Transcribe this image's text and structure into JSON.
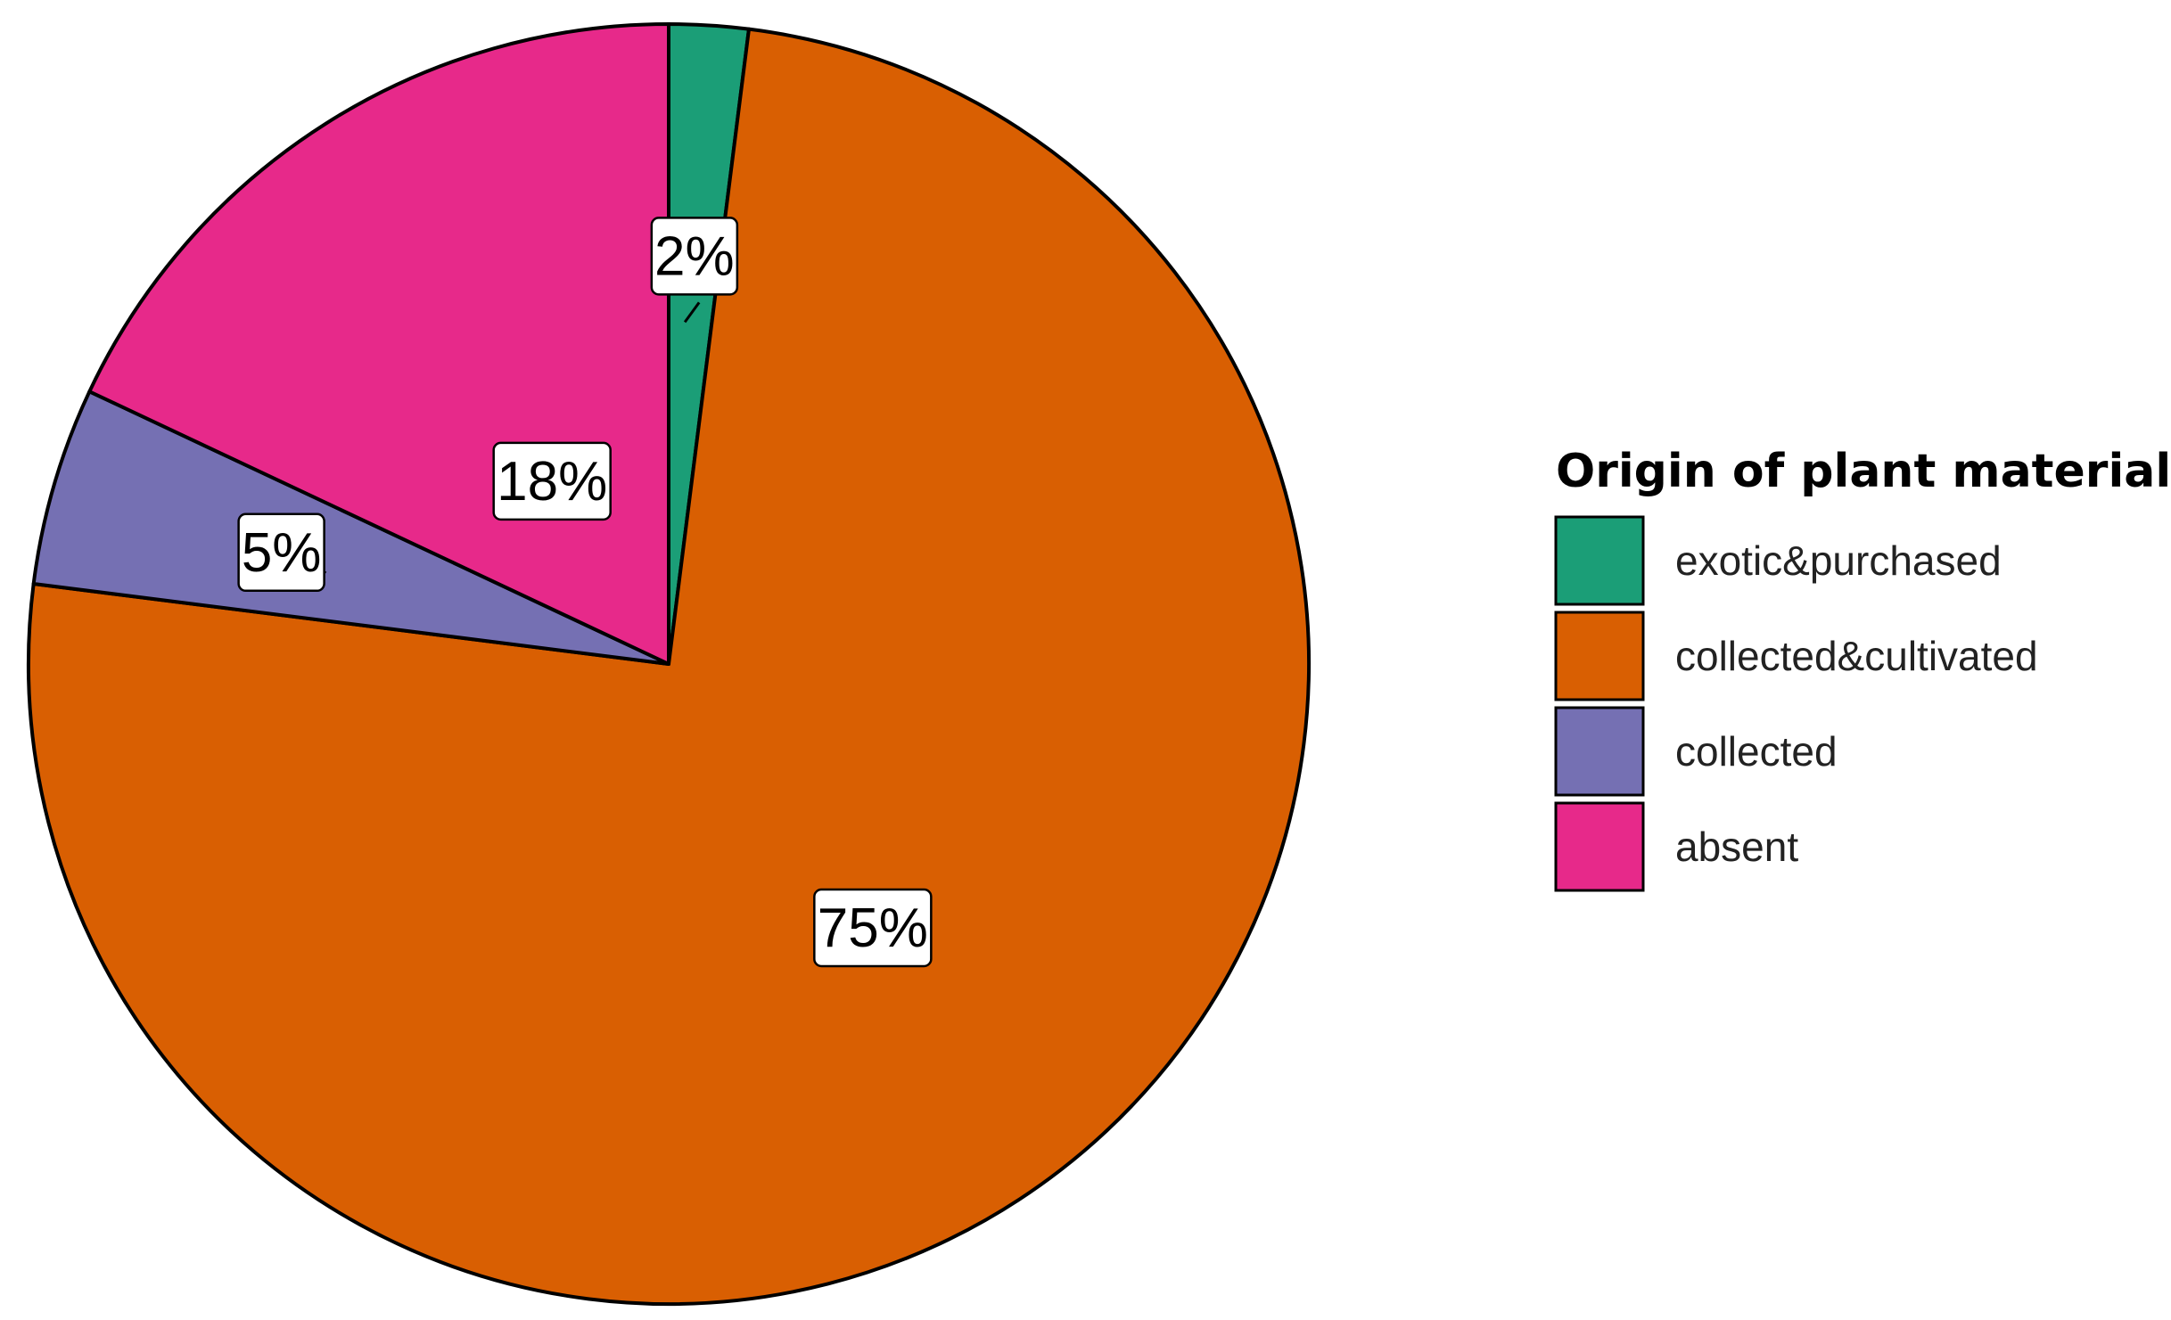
{
  "chart_data": {
    "type": "pie",
    "title": "",
    "legend": {
      "title": "Origin of plant material",
      "position": "right"
    },
    "slices": [
      {
        "name": "exotic&purchased",
        "value": 2,
        "label": "2%",
        "color": "#1b9e77"
      },
      {
        "name": "collected&cultivated",
        "value": 75,
        "label": "75%",
        "color": "#d95f02"
      },
      {
        "name": "collected",
        "value": 5,
        "label": "5%",
        "color": "#7570b3"
      },
      {
        "name": "absent",
        "value": 18,
        "label": "18%",
        "color": "#e7298a"
      }
    ]
  }
}
